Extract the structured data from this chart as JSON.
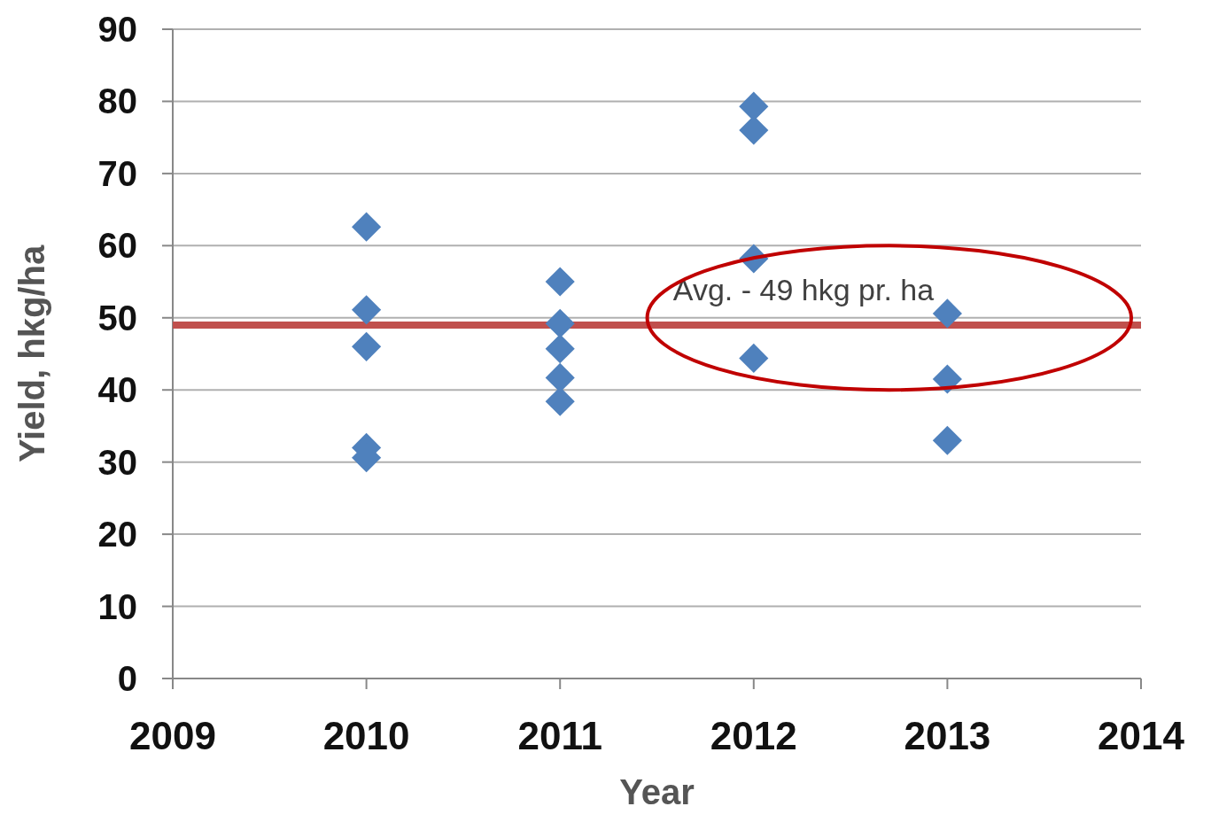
{
  "chart_data": {
    "type": "scatter",
    "xlabel": "Year",
    "ylabel": "Yield, hkg/ha",
    "xlim": [
      2009,
      2014
    ],
    "xticks": [
      2009,
      2010,
      2011,
      2012,
      2013,
      2014
    ],
    "ylim": [
      0,
      90
    ],
    "yticks": [
      0,
      10,
      20,
      30,
      40,
      50,
      60,
      70,
      80,
      90
    ],
    "grid": "y",
    "marker": "diamond",
    "series": [
      {
        "color": "#4f81bd",
        "x": [
          2010,
          2010,
          2010,
          2010,
          2010,
          2011,
          2011,
          2011,
          2011,
          2011,
          2012,
          2012,
          2012,
          2012,
          2013,
          2013,
          2013
        ],
        "values": [
          62.6,
          51.1,
          46.0,
          32.0,
          30.6,
          55.0,
          49.2,
          45.7,
          41.7,
          38.4,
          79.3,
          76.0,
          58.2,
          44.4,
          50.6,
          41.5,
          33.0
        ]
      }
    ],
    "ref_lines": [
      {
        "axis": "y",
        "value": 49,
        "label": "Avg. - 49 hkg pr. ha",
        "color": "#c0504d"
      }
    ]
  }
}
